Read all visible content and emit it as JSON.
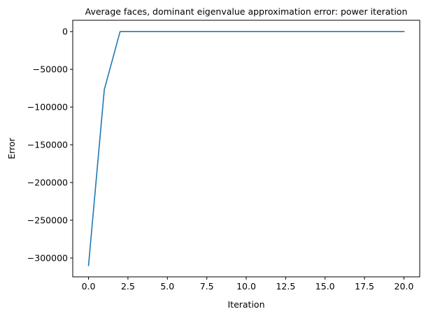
{
  "chart_data": {
    "type": "line",
    "title": "Average faces, dominant eigenvalue approximation error: power iteration",
    "xlabel": "Iteration",
    "ylabel": "Error",
    "xlim": [
      -1,
      21
    ],
    "ylim": [
      -325000,
      15000
    ],
    "x_ticks": [
      0.0,
      2.5,
      5.0,
      7.5,
      10.0,
      12.5,
      15.0,
      17.5,
      20.0
    ],
    "x_tick_labels": [
      "0.0",
      "2.5",
      "5.0",
      "7.5",
      "10.0",
      "12.5",
      "15.0",
      "17.5",
      "20.0"
    ],
    "y_ticks": [
      0,
      -50000,
      -100000,
      -150000,
      -200000,
      -250000,
      -300000
    ],
    "y_tick_labels": [
      "0",
      "−50000",
      "−100000",
      "−150000",
      "−200000",
      "−250000",
      "−300000"
    ],
    "grid": false,
    "series": [
      {
        "color": "#1f77b4",
        "x": [
          0,
          1,
          2,
          3,
          4,
          5,
          6,
          7,
          8,
          9,
          10,
          11,
          12,
          13,
          14,
          15,
          16,
          17,
          18,
          19,
          20
        ],
        "y": [
          -310000,
          -77000,
          0,
          0,
          0,
          0,
          0,
          0,
          0,
          0,
          0,
          0,
          0,
          0,
          0,
          0,
          0,
          0,
          0,
          0,
          0
        ]
      }
    ]
  }
}
